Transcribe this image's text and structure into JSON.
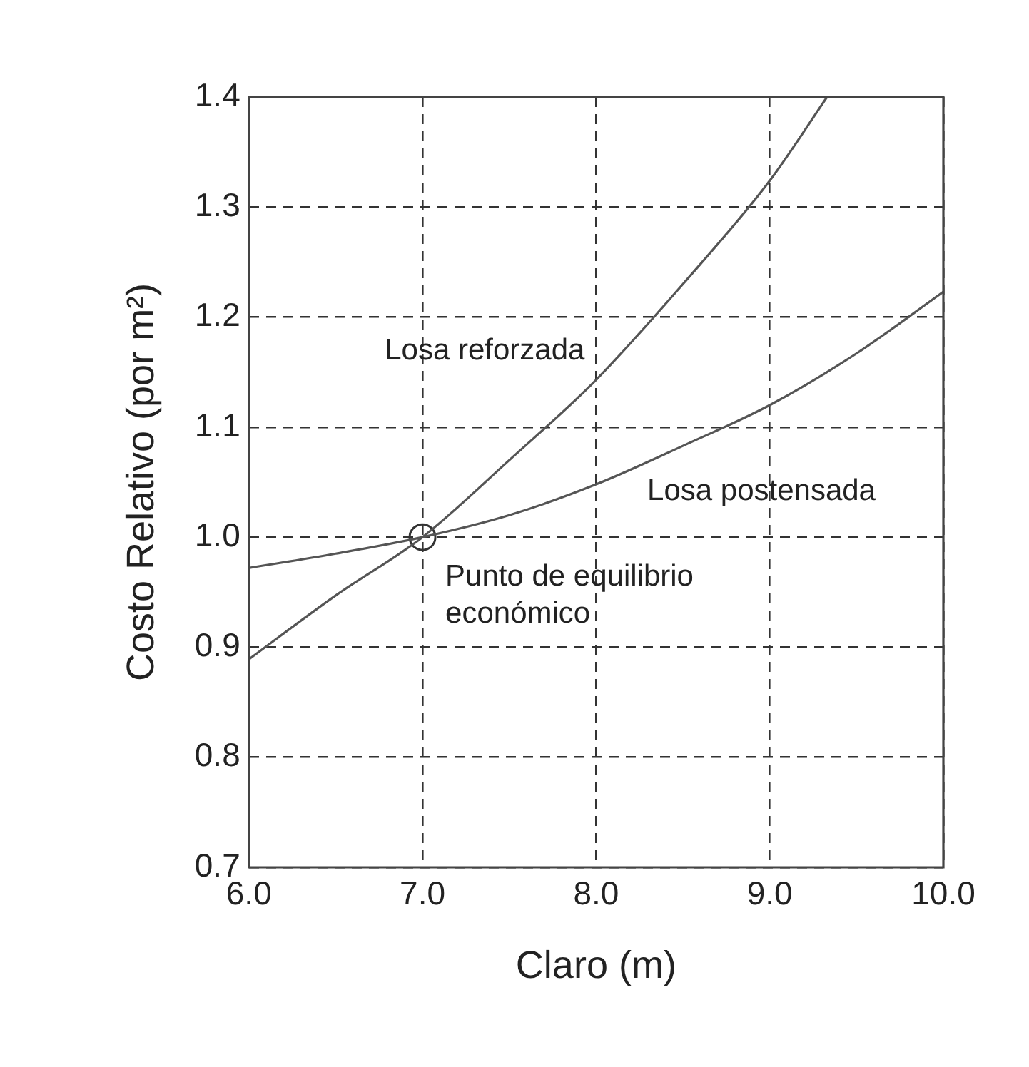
{
  "chart_data": {
    "type": "line",
    "xlabel": "Claro (m)",
    "ylabel": "Costo Relativo (por m²)",
    "xlim": [
      6,
      10
    ],
    "xticks": [
      {
        "value": 6,
        "label": "6.0"
      },
      {
        "value": 7,
        "label": "7.0"
      },
      {
        "value": 8,
        "label": "8.0"
      },
      {
        "value": 9,
        "label": "9.0"
      },
      {
        "value": 10,
        "label": "10.0"
      }
    ],
    "ylim": [
      0.7,
      1.4
    ],
    "yticks": [
      0.7,
      0.8,
      0.9,
      {
        "value": 1,
        "label": "1.0"
      },
      1.1,
      1.2,
      1.3,
      1.4
    ],
    "grid": true,
    "legend": false,
    "line_style": "solid",
    "series": [
      {
        "name": "Losa reforzada",
        "color": "#555555",
        "x": [
          6,
          6.5,
          7,
          7.5,
          8,
          8.5,
          9,
          9.33
        ],
        "values": [
          0.889,
          0.947,
          1.0,
          1.07,
          1.143,
          1.23,
          1.324,
          1.4
        ]
      },
      {
        "name": "Losa postensada",
        "color": "#555555",
        "x": [
          6,
          6.5,
          7,
          7.5,
          8,
          8.5,
          9,
          9.5,
          10
        ],
        "values": [
          0.972,
          0.985,
          1.0,
          1.02,
          1.048,
          1.083,
          1.12,
          1.167,
          1.223
        ]
      },
      {
        "type": "scatter",
        "marker": "circle",
        "color": "#333333",
        "x": [
          7
        ],
        "values": [
          1.0
        ]
      }
    ],
    "annotations": [
      {
        "text": "Punto de equilibrio\neconómico",
        "x": 7,
        "y": 1.0
      }
    ]
  }
}
